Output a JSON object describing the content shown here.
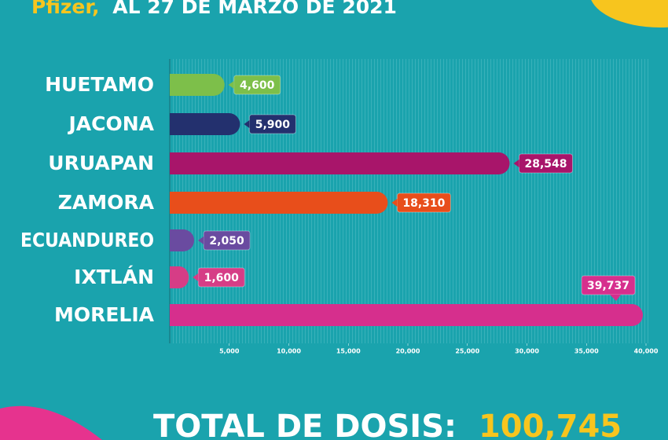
{
  "chart_data": {
    "type": "bar",
    "orientation": "horizontal",
    "title_highlight": "Pfizer,",
    "title": "AL 27 DE MARZO DE 2021",
    "categories": [
      "HUETAMO",
      "JACONA",
      "URUAPAN",
      "ZAMORA",
      "ECUANDUREO",
      "IXTLÁN",
      "MORELIA"
    ],
    "values": [
      4600,
      5900,
      28548,
      18310,
      2050,
      1600,
      39737
    ],
    "value_labels": [
      "4,600",
      "5,900",
      "28,548",
      "18,310",
      "2,050",
      "1,600",
      "39,737"
    ],
    "colors": [
      "#7dbf4a",
      "#23306e",
      "#a8156a",
      "#e84e1b",
      "#6a4ba0",
      "#d63d86",
      "#d62f8d"
    ],
    "xlim": [
      0,
      40000
    ],
    "xticks": [
      {
        "value": 5000,
        "label": "5,000"
      },
      {
        "value": 10000,
        "label": "10,000"
      },
      {
        "value": 15000,
        "label": "15,000"
      },
      {
        "value": 20000,
        "label": "20,000"
      },
      {
        "value": 25000,
        "label": "25,000"
      },
      {
        "value": 30000,
        "label": "30,000"
      },
      {
        "value": 35000,
        "label": "35,000"
      },
      {
        "value": 40000,
        "label": "40,000"
      }
    ],
    "total_label": "TOTAL DE DOSIS:",
    "total_value": "100,745"
  }
}
